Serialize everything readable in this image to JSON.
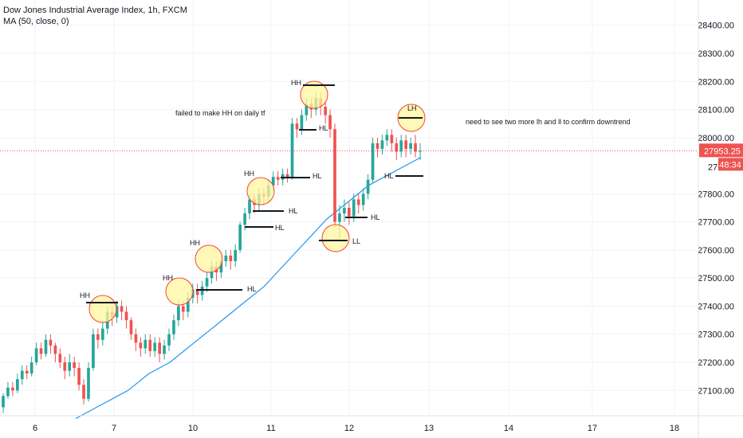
{
  "legend": {
    "symbol": "Dow Jones Industrial Average Index, 1h, FXCM",
    "indicator": "MA (50, close, 0)"
  },
  "price_tag": {
    "value": "27953.25",
    "countdown": "48:34",
    "partial_label": "27"
  },
  "colors": {
    "up": "#26a69a",
    "down": "#ef5350",
    "ma": "#2196f3",
    "circle_fill": "#fff59d",
    "circle_stroke": "#f44336",
    "price_line": "#ef5350"
  },
  "chart_data": {
    "type": "candlestick",
    "x_ticks": [
      "6",
      "7",
      "10",
      "11",
      "12",
      "13",
      "14",
      "17",
      "18"
    ],
    "y_ticks": [
      "27100.00",
      "27200.00",
      "27300.00",
      "27400.00",
      "27500.00",
      "27600.00",
      "27700.00",
      "27800.00",
      "28000.00",
      "28100.00",
      "28200.00",
      "28300.00",
      "28400.00"
    ],
    "ylim": [
      27010,
      28490
    ],
    "last_price": 27953.25,
    "candles": [
      [
        27040,
        27080,
        27020,
        27090
      ],
      [
        27080,
        27110,
        27070,
        27130
      ],
      [
        27110,
        27100,
        27080,
        27130
      ],
      [
        27100,
        27140,
        27090,
        27160
      ],
      [
        27140,
        27170,
        27120,
        27190
      ],
      [
        27170,
        27160,
        27140,
        27190
      ],
      [
        27160,
        27200,
        27150,
        27220
      ],
      [
        27200,
        27250,
        27190,
        27270
      ],
      [
        27250,
        27230,
        27210,
        27270
      ],
      [
        27230,
        27280,
        27220,
        27300
      ],
      [
        27280,
        27260,
        27230,
        27300
      ],
      [
        27260,
        27230,
        27200,
        27270
      ],
      [
        27230,
        27200,
        27180,
        27250
      ],
      [
        27200,
        27170,
        27140,
        27220
      ],
      [
        27170,
        27200,
        27150,
        27230
      ],
      [
        27200,
        27180,
        27150,
        27220
      ],
      [
        27180,
        27120,
        27100,
        27200
      ],
      [
        27120,
        27070,
        27050,
        27140
      ],
      [
        27070,
        27180,
        27060,
        27200
      ],
      [
        27180,
        27300,
        27170,
        27320
      ],
      [
        27300,
        27280,
        27250,
        27320
      ],
      [
        27280,
        27320,
        27260,
        27350
      ],
      [
        27320,
        27380,
        27300,
        27400
      ],
      [
        27380,
        27360,
        27330,
        27400
      ],
      [
        27360,
        27400,
        27340,
        27420
      ],
      [
        27400,
        27380,
        27350,
        27420
      ],
      [
        27380,
        27350,
        27320,
        27400
      ],
      [
        27350,
        27300,
        27280,
        27360
      ],
      [
        27300,
        27270,
        27240,
        27320
      ],
      [
        27270,
        27250,
        27220,
        27290
      ],
      [
        27250,
        27280,
        27230,
        27300
      ],
      [
        27280,
        27240,
        27220,
        27300
      ],
      [
        27240,
        27270,
        27220,
        27290
      ],
      [
        27270,
        27230,
        27200,
        27290
      ],
      [
        27230,
        27260,
        27210,
        27280
      ],
      [
        27260,
        27300,
        27240,
        27320
      ],
      [
        27300,
        27350,
        27280,
        27370
      ],
      [
        27350,
        27400,
        27330,
        27420
      ],
      [
        27400,
        27380,
        27350,
        27420
      ],
      [
        27380,
        27430,
        27360,
        27450
      ],
      [
        27430,
        27460,
        27410,
        27480
      ],
      [
        27460,
        27440,
        27410,
        27480
      ],
      [
        27440,
        27470,
        27420,
        27490
      ],
      [
        27470,
        27500,
        27450,
        27520
      ],
      [
        27500,
        27540,
        27480,
        27560
      ],
      [
        27540,
        27520,
        27490,
        27560
      ],
      [
        27520,
        27560,
        27500,
        27580
      ],
      [
        27560,
        27580,
        27540,
        27600
      ],
      [
        27580,
        27560,
        27530,
        27600
      ],
      [
        27560,
        27600,
        27540,
        27620
      ],
      [
        27600,
        27690,
        27590,
        27700
      ],
      [
        27690,
        27730,
        27670,
        27750
      ],
      [
        27730,
        27780,
        27710,
        27800
      ],
      [
        27780,
        27760,
        27730,
        27800
      ],
      [
        27760,
        27800,
        27740,
        27820
      ],
      [
        27800,
        27790,
        27760,
        27820
      ],
      [
        27790,
        27830,
        27770,
        27850
      ],
      [
        27830,
        27860,
        27810,
        27880
      ],
      [
        27860,
        27850,
        27830,
        27880
      ],
      [
        27850,
        27870,
        27830,
        27890
      ],
      [
        27870,
        27860,
        27840,
        27890
      ],
      [
        27860,
        28050,
        27850,
        28070
      ],
      [
        28050,
        28030,
        28000,
        28070
      ],
      [
        28030,
        28080,
        28010,
        28100
      ],
      [
        28080,
        28120,
        28060,
        28140
      ],
      [
        28120,
        28100,
        28070,
        28140
      ],
      [
        28100,
        28140,
        28080,
        28160
      ],
      [
        28140,
        28110,
        28080,
        28160
      ],
      [
        28110,
        28080,
        28050,
        28130
      ],
      [
        28080,
        28030,
        28000,
        28100
      ],
      [
        28030,
        27700,
        27680,
        28050
      ],
      [
        27700,
        27730,
        27640,
        27760
      ],
      [
        27730,
        27750,
        27700,
        27780
      ],
      [
        27750,
        27720,
        27690,
        27770
      ],
      [
        27720,
        27780,
        27700,
        27800
      ],
      [
        27780,
        27760,
        27730,
        27800
      ],
      [
        27760,
        27800,
        27740,
        27820
      ],
      [
        27800,
        27850,
        27780,
        27870
      ],
      [
        27850,
        27980,
        27840,
        28000
      ],
      [
        27980,
        27960,
        27930,
        28000
      ],
      [
        27960,
        27990,
        27940,
        28010
      ],
      [
        27990,
        28010,
        27970,
        28030
      ],
      [
        28010,
        27980,
        27950,
        28030
      ],
      [
        27980,
        27950,
        27920,
        28000
      ],
      [
        27950,
        27990,
        27930,
        28010
      ],
      [
        27990,
        27960,
        27930,
        28010
      ],
      [
        27960,
        27980,
        27940,
        28000
      ],
      [
        27980,
        27950,
        27930,
        28010
      ],
      [
        27950,
        27953.25,
        27920,
        27980
      ]
    ],
    "ma50": [
      27000,
      27020,
      27040,
      27060,
      27080,
      27100,
      27130,
      27160,
      27180,
      27200,
      27230,
      27260,
      27290,
      27320,
      27350,
      27380,
      27410,
      27440,
      27470,
      27510,
      27550,
      27590,
      27630,
      27670,
      27710,
      27740,
      27770,
      27800,
      27830,
      27850,
      27870,
      27890,
      27910,
      27930
    ],
    "annotations": [
      {
        "text": "HH",
        "kind": "label"
      },
      {
        "text": "HH",
        "kind": "label"
      },
      {
        "text": "HH",
        "kind": "label"
      },
      {
        "text": "HH",
        "kind": "label"
      },
      {
        "text": "HH",
        "kind": "label"
      },
      {
        "text": "LH",
        "kind": "label"
      },
      {
        "text": "LL",
        "kind": "label"
      },
      {
        "text": "HL",
        "kind": "label"
      },
      {
        "text": "HL",
        "kind": "label"
      },
      {
        "text": "HL",
        "kind": "label"
      },
      {
        "text": "HL",
        "kind": "label"
      },
      {
        "text": "HL",
        "kind": "label"
      },
      {
        "text": "HL",
        "kind": "label"
      },
      {
        "text": "HL",
        "kind": "label"
      },
      {
        "text": "failed to make HH on daily tf",
        "kind": "note"
      },
      {
        "text": "need to see two more lh and ll to confirm downtrend",
        "kind": "note"
      }
    ]
  }
}
